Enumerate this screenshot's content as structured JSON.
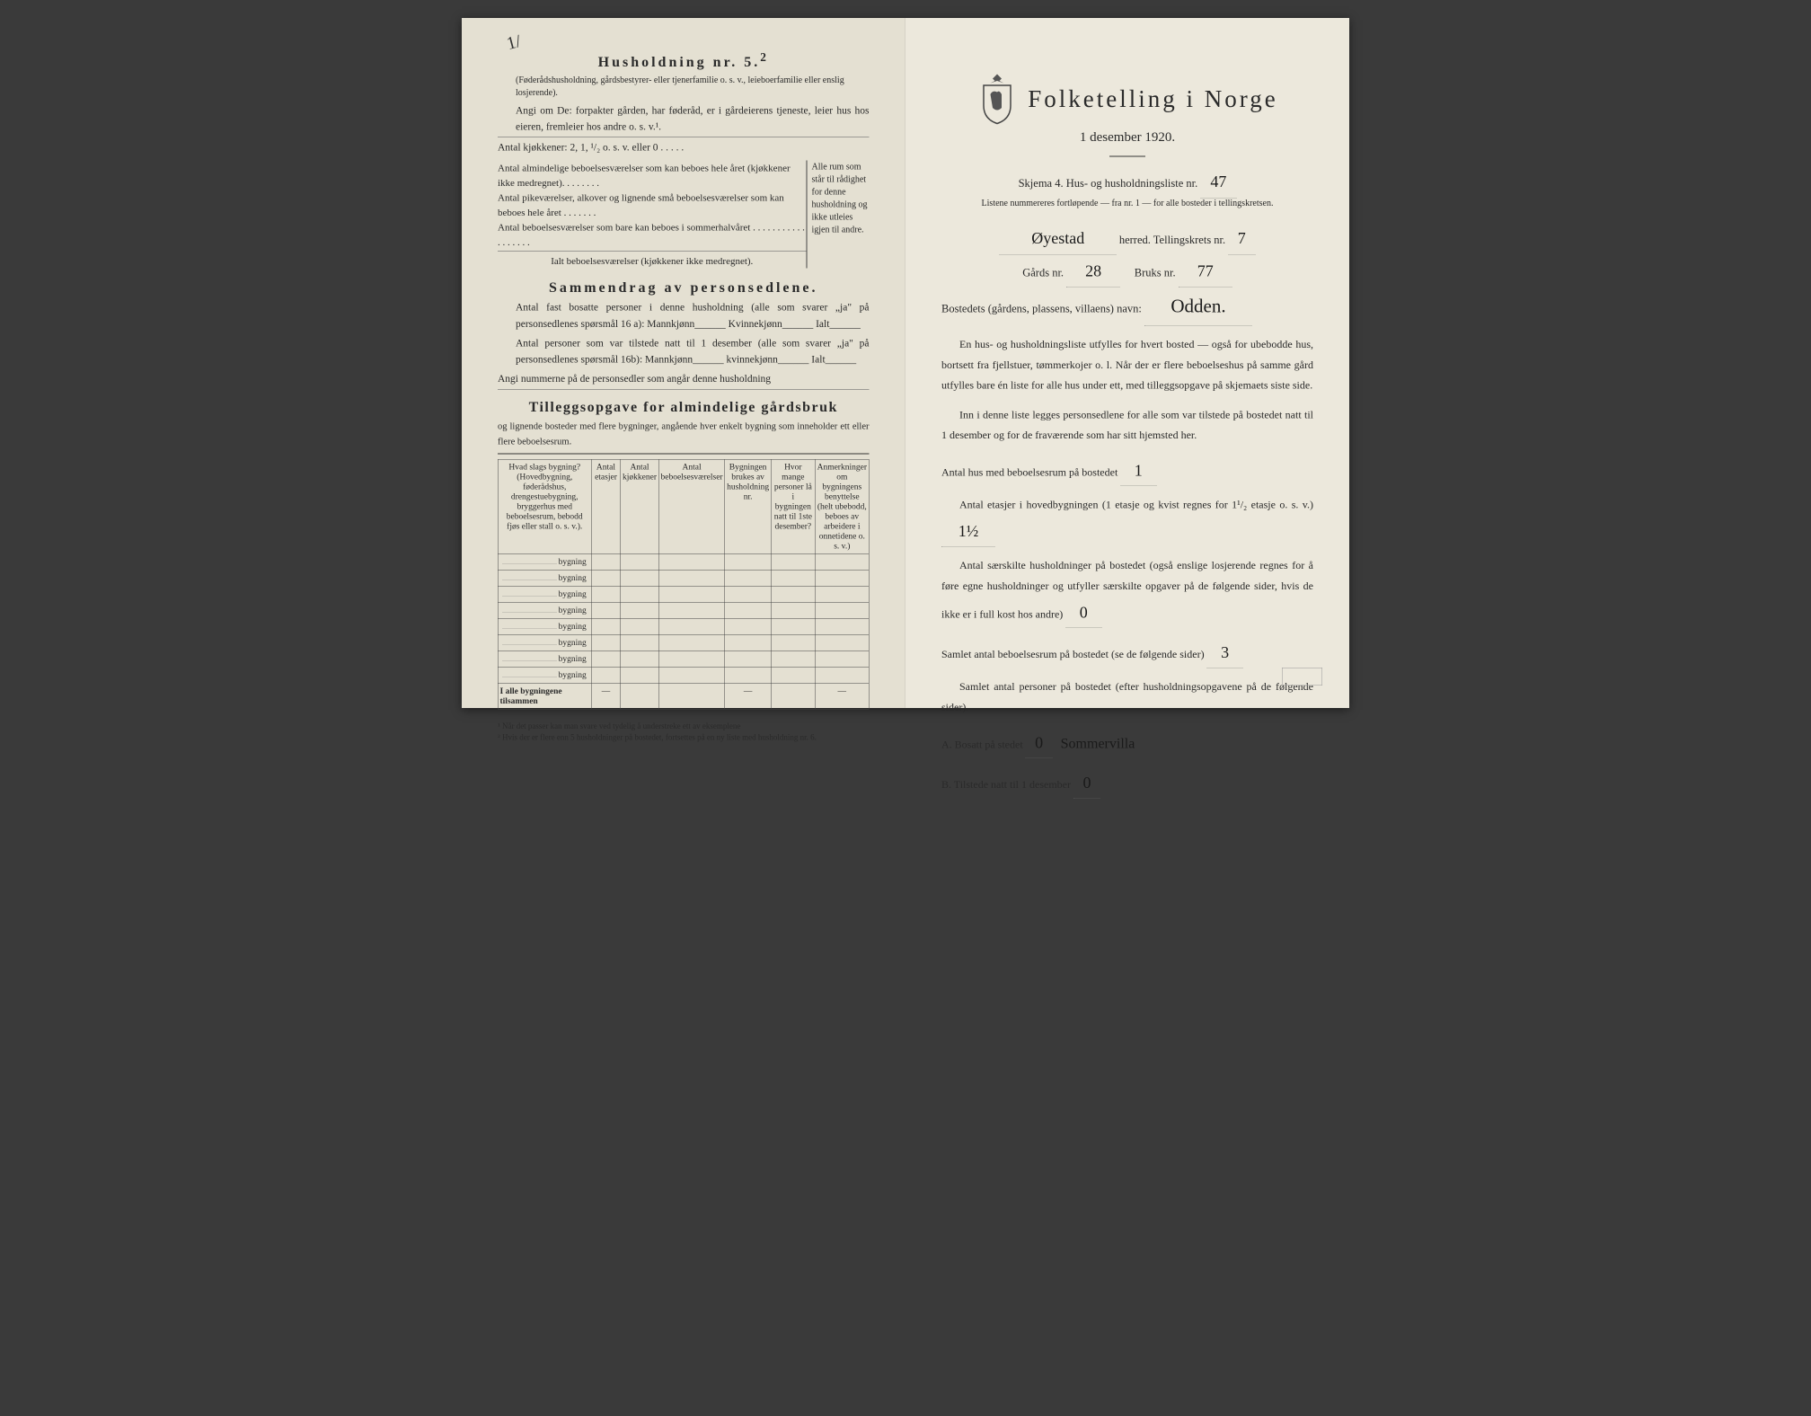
{
  "left": {
    "title": "Husholdning nr. 5.",
    "title_sup": "2",
    "note1": "(Føderådshusholdning, gårdsbestyrer- eller tjenerfamilie o. s. v., leieboerfamilie eller enslig losjerende).",
    "para1": "Angi om De: forpakter gården, har føderåd, er i gårdeierens tjeneste, leier hus hos eieren, fremleier hos andre o. s. v.¹.",
    "line_kjokken": "Antal kjøkkener: 2, 1, ¹/₂ o. s. v. eller 0 . . . . .",
    "brace_lines": [
      "Antal almindelige beboelsesværelser som kan beboes hele året (kjøkkener ikke medregnet). . . . . . . .",
      "Antal pikeværelser, alkover og lignende små beboelsesværelser som kan beboes hele året . . . . . . .",
      "Antal beboelsesværelser som bare kan beboes i sommerhalvåret . . . . . . . . . . . . . . . . . .",
      "Ialt beboelsesværelser (kjøkkener ikke medregnet)."
    ],
    "brace_right": "Alle rum som står til rådighet for denne husholdning og ikke utleies igjen til andre.",
    "section2_title": "Sammendrag av personsedlene.",
    "s2_p1": "Antal fast bosatte personer i denne husholdning (alle som svarer „ja\" på personsedlenes spørsmål 16 a): Mannkjønn______ Kvinnekjønn______ Ialt______",
    "s2_p2": "Antal personer som var tilstede natt til 1 desember (alle som svarer „ja\" på personsedlenes spørsmål 16b): Mannkjønn______ kvinnekjønn______ Ialt______",
    "s2_p3": "Angi nummerne på de personsedler som angår denne husholdning",
    "section3_title": "Tilleggsopgave for almindelige gårdsbruk",
    "s3_sub": "og lignende bosteder med flere bygninger, angående hver enkelt bygning som inneholder ett eller flere beboelsesrum.",
    "table_headers": [
      "Hvad slags bygning?\n(Hovedbygning, føderådshus, drengestuebygning, bryggerhus med beboelsesrum, bebodd fjøs eller stall o. s. v.).",
      "Antal etasjer",
      "Antal kjøkkener",
      "Antal beboelsesværelser",
      "Bygningen brukes av husholdning nr.",
      "Hvor mange personer lå i bygningen natt til 1ste desember?",
      "Anmerkninger om bygningens benyttelse (helt ubebodd, beboes av arbeidere i onnetidene o. s. v.)"
    ],
    "row_label": "bygning",
    "row_count": 8,
    "total_row": "I alle bygningene tilsammen",
    "footnote1": "¹ Når det passer kan man svare ved tydelig å understreke ett av eksemplene",
    "footnote2": "² Hvis der er flere enn 5 husholdninger på bostedet, fortsettes på en ny liste med husholdning nr. 6."
  },
  "right": {
    "main_title": "Folketelling i Norge",
    "subtitle": "1 desember 1920.",
    "skjema_line": "Skjema 4.   Hus- og husholdningsliste nr.",
    "skjema_value": "47",
    "listene": "Listene nummereres fortløpende — fra nr. 1 — for alle bosteder i tellingskretsen.",
    "herred_value": "Øyestad",
    "herred_label": "herred.   Tellingskrets nr.",
    "krets_value": "7",
    "gards_label": "Gårds nr.",
    "gards_value": "28",
    "bruks_label": "Bruks nr.",
    "bruks_value": "77",
    "bosted_label": "Bostedets (gårdens, plassens, villaens) navn:",
    "bosted_value": "Odden.",
    "para1": "En hus- og husholdningsliste utfylles for hvert bosted — også for ubebodde hus, bortsett fra fjellstuer, tømmerkojer o. l. Når der er flere beboelseshus på samme gård utfylles bare én liste for alle hus under ett, med tilleggsopgave på skjemaets siste side.",
    "para2": "Inn i denne liste legges personsedlene for alle som var tilstede på bostedet natt til 1 desember og for de fraværende som har sitt hjemsted her.",
    "q1": "Antal hus med beboelsesrum på bostedet",
    "q1_value": "1",
    "q2a": "Antal etasjer i hovedbygningen (1 etasje og kvist regnes for 1¹/₂ etasje o. s. v.)",
    "q2_value": "1½",
    "q3": "Antal særskilte husholdninger på bostedet (også enslige losjerende regnes for å føre egne husholdninger og utfyller særskilte opgaver på de følgende sider, hvis de ikke er i full kost hos andre)",
    "q3_value": "0",
    "q4": "Samlet antal beboelsesrum på bostedet (se de følgende sider)",
    "q4_value": "3",
    "q5": "Samlet antal personer på bostedet (efter husholdningsopgavene på de følgende sider).",
    "qA": "A.  Bosatt på stedet",
    "qA_value": "0",
    "qA_note": "Sommervilla",
    "qB": "B.  Tilstede natt til 1 desember",
    "qB_value": "0"
  },
  "colors": {
    "paper_left": "#e4e0d2",
    "paper_right": "#ece8dc",
    "ink": "#2a2a2a",
    "handwriting": "#1a1a1a"
  }
}
